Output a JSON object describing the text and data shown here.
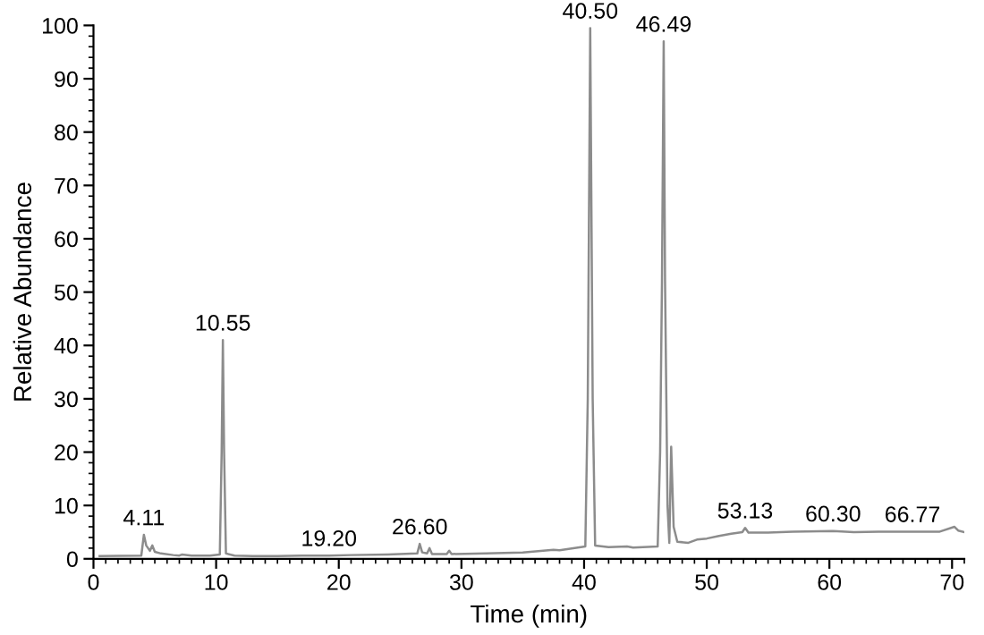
{
  "chart_data": {
    "type": "line",
    "xlabel": "Time (min)",
    "ylabel": "Relative Abundance",
    "xlim": [
      0,
      71
    ],
    "ylim": [
      0,
      100
    ],
    "xticks": [
      0,
      10,
      20,
      30,
      40,
      50,
      60,
      70
    ],
    "yticks": [
      0,
      10,
      20,
      30,
      40,
      50,
      60,
      70,
      80,
      90,
      100
    ],
    "grid": false,
    "legend": false,
    "marker": "none",
    "line_style": "solid",
    "series": [
      {
        "color": "#8c8c8c",
        "x": [
          0.5,
          3.9,
          4.11,
          4.3,
          4.6,
          4.8,
          5.0,
          5.5,
          6.5,
          7.0,
          7.2,
          8.0,
          9.5,
          10.3,
          10.45,
          10.55,
          10.65,
          10.8,
          11.5,
          13.0,
          15.0,
          17.0,
          19.2,
          21.0,
          24.0,
          26.4,
          26.6,
          26.8,
          27.2,
          27.4,
          27.6,
          28.8,
          29.0,
          29.2,
          32.0,
          35.0,
          37.5,
          38.0,
          40.1,
          40.3,
          40.5,
          40.7,
          40.9,
          42.0,
          43.5,
          44.0,
          46.0,
          46.2,
          46.35,
          46.49,
          46.6,
          46.8,
          46.95,
          47.1,
          47.3,
          47.6,
          48.5,
          49.2,
          50.0,
          51.0,
          52.0,
          52.9,
          53.13,
          53.4,
          55.0,
          57.0,
          60.3,
          62.0,
          64.0,
          66.77,
          69.0,
          70.2,
          70.5,
          71.0
        ],
        "values": [
          0.5,
          0.6,
          4.5,
          2.5,
          1.5,
          2.5,
          1.3,
          1.0,
          0.7,
          0.6,
          0.8,
          0.6,
          0.6,
          0.8,
          20.0,
          41.0,
          20.0,
          1.0,
          0.6,
          0.5,
          0.5,
          0.6,
          0.6,
          0.7,
          0.8,
          1.0,
          2.8,
          1.2,
          1.0,
          2.0,
          0.9,
          0.9,
          1.5,
          0.9,
          1.0,
          1.2,
          1.7,
          1.6,
          2.3,
          30.0,
          99.5,
          30.0,
          2.5,
          2.2,
          2.3,
          2.1,
          2.3,
          20.0,
          52.0,
          97.0,
          52.0,
          10.0,
          3.0,
          21.0,
          6.0,
          3.2,
          3.0,
          3.6,
          3.8,
          4.3,
          4.7,
          5.0,
          5.8,
          4.9,
          4.9,
          5.1,
          5.2,
          5.0,
          5.1,
          5.1,
          5.1,
          6.0,
          5.3,
          5.0
        ]
      }
    ],
    "annotations": [
      {
        "text": "4.11",
        "x": 4.11,
        "y": 4.5
      },
      {
        "text": "10.55",
        "x": 10.55,
        "y": 41
      },
      {
        "text": "19.20",
        "x": 19.2,
        "y": 0.6
      },
      {
        "text": "26.60",
        "x": 26.6,
        "y": 2.8
      },
      {
        "text": "40.50",
        "x": 40.5,
        "y": 99.5
      },
      {
        "text": "46.49",
        "x": 46.49,
        "y": 97
      },
      {
        "text": "53.13",
        "x": 53.13,
        "y": 5.8
      },
      {
        "text": "60.30",
        "x": 60.3,
        "y": 5.2
      },
      {
        "text": "66.77",
        "x": 66.77,
        "y": 5.1
      }
    ]
  }
}
